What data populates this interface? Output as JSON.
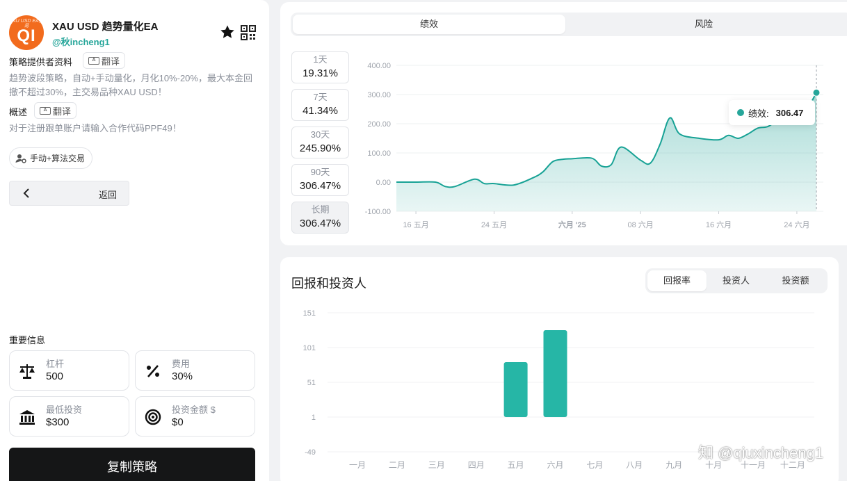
{
  "provider": {
    "avatar_top_text": "XAU USD EA交易",
    "avatar_text": "QI",
    "title": "XAU USD 趋势量化EA",
    "handle": "@秋incheng1"
  },
  "left": {
    "profile_label": "策略提供者资料",
    "translate_label": "翻译",
    "description": "趋势波段策略，自动+手动量化，月化10%-20%，最大本金回撤不超过30%，主交易品种XAU USD！",
    "overview_label": "概述",
    "overview_text": "对于注册跟单账户请输入合作代码PPF49！",
    "trade_type": "手动+算法交易",
    "back_label": "返回",
    "info_heading": "重要信息",
    "info": [
      {
        "key": "杠杆",
        "value": "500",
        "icon": "scale-icon"
      },
      {
        "key": "费用",
        "value": "30%",
        "icon": "percent-icon"
      },
      {
        "key": "最低投资",
        "value": "$300",
        "icon": "bank-icon"
      },
      {
        "key": "投资金额 $",
        "value": "$0",
        "icon": "target-icon"
      }
    ],
    "copy_button": "复制策略"
  },
  "performance": {
    "tabs": [
      "绩效",
      "风险"
    ],
    "active_tab": 0,
    "periods": [
      {
        "label": "1天",
        "value": "19.31%"
      },
      {
        "label": "7天",
        "value": "41.34%"
      },
      {
        "label": "30天",
        "value": "245.90%"
      },
      {
        "label": "90天",
        "value": "306.47%"
      },
      {
        "label": "长期",
        "value": "306.47%"
      }
    ],
    "selected_period": 4,
    "tooltip_label": "绩效:",
    "tooltip_value": "306.47"
  },
  "returns": {
    "title": "回报和投资人",
    "tabs": [
      "回报率",
      "投资人",
      "投资额"
    ],
    "active_tab": 0
  },
  "watermark": "知 @qiuxincheng1",
  "colors": {
    "accent": "#26a69a",
    "button_dark": "#151617"
  },
  "chart_data": [
    {
      "type": "area",
      "x": [
        "2025-05-14",
        "2025-05-16",
        "2025-05-18",
        "2025-05-19",
        "2025-05-20",
        "2025-05-22",
        "2025-05-23",
        "2025-05-24",
        "2025-05-26",
        "2025-05-28",
        "2025-05-29",
        "2025-05-30",
        "2025-05-31",
        "2025-06-01",
        "2025-06-03",
        "2025-06-04",
        "2025-06-05",
        "2025-06-06",
        "2025-06-08",
        "2025-06-09",
        "2025-06-10",
        "2025-06-11",
        "2025-06-12",
        "2025-06-14",
        "2025-06-16",
        "2025-06-17",
        "2025-06-18",
        "2025-06-19",
        "2025-06-20",
        "2025-06-21",
        "2025-06-22",
        "2025-06-23",
        "2025-06-24",
        "2025-06-25",
        "2025-06-26"
      ],
      "y": [
        0,
        0,
        0,
        -15,
        -15,
        10,
        -5,
        -5,
        -10,
        15,
        35,
        70,
        78,
        80,
        82,
        55,
        60,
        120,
        75,
        65,
        130,
        220,
        165,
        150,
        145,
        160,
        150,
        165,
        185,
        190,
        210,
        220,
        235,
        250,
        306.47
      ],
      "ylim": [
        -100,
        400
      ],
      "yticks": [
        "400.00",
        "300.00",
        "200.00",
        "100.00",
        "0.00",
        "-100.00"
      ],
      "xticks": [
        "16 五月",
        "24 五月",
        "六月 '25",
        "08 六月",
        "16 六月",
        "24 六月"
      ],
      "series": [
        {
          "name": "绩效"
        }
      ],
      "grid": true
    },
    {
      "type": "bar",
      "categories": [
        "一月",
        "二月",
        "三月",
        "四月",
        "五月",
        "六月",
        "七月",
        "八月",
        "九月",
        "十月",
        "十一月",
        "十二月"
      ],
      "values": [
        0,
        0,
        0,
        0,
        79,
        125,
        0,
        0,
        0,
        0,
        0,
        0
      ],
      "ylim": [
        -49,
        151
      ],
      "yticks": [
        "151",
        "101",
        "51",
        "1",
        "-49"
      ],
      "grid": true
    }
  ]
}
